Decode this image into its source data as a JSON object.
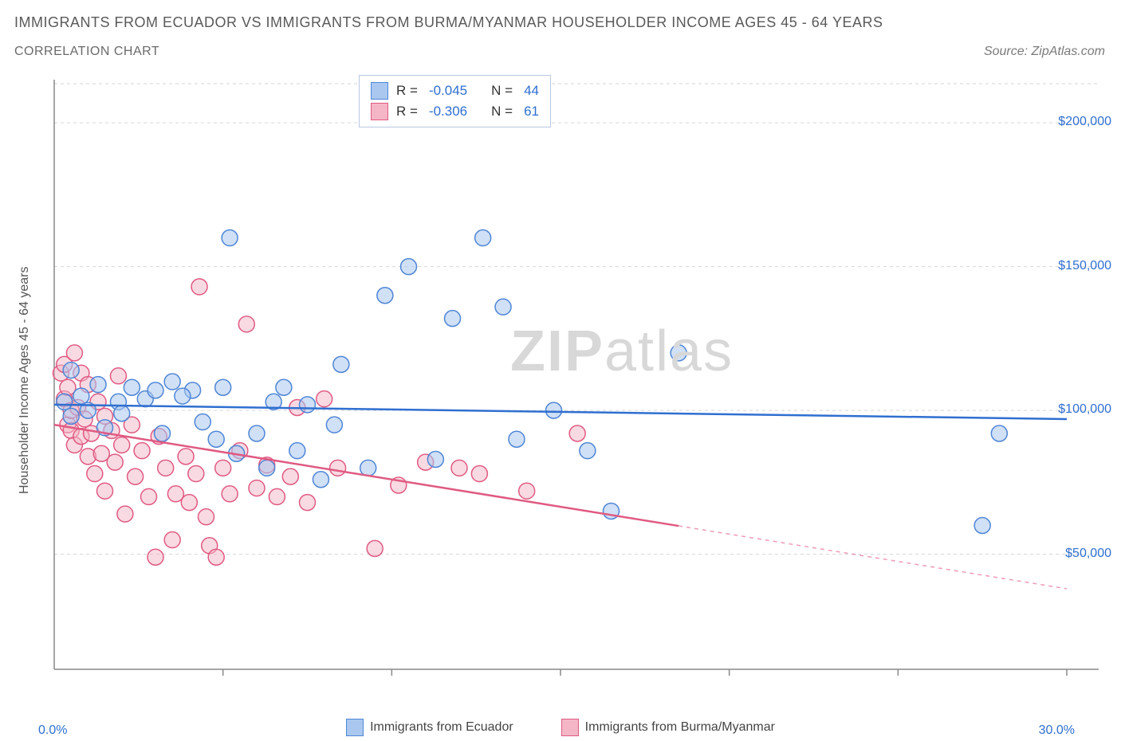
{
  "title": "IMMIGRANTS FROM ECUADOR VS IMMIGRANTS FROM BURMA/MYANMAR HOUSEHOLDER INCOME AGES 45 - 64 YEARS",
  "subtitle": "CORRELATION CHART",
  "source": "Source: ZipAtlas.com",
  "watermark_bold": "ZIP",
  "watermark_light": "atlas",
  "ylabel": "Householder Income Ages 45 - 64 years",
  "xaxis": {
    "min_label": "0.0%",
    "max_label": "30.0%",
    "min": 0,
    "max": 30
  },
  "yaxis": {
    "min": 10000,
    "max": 215000,
    "ticks": [
      50000,
      100000,
      150000,
      200000
    ],
    "tick_labels": [
      "$50,000",
      "$100,000",
      "$150,000",
      "$200,000"
    ]
  },
  "series1": {
    "name": "Immigrants from Ecuador",
    "color_fill": "#a9c7ef",
    "color_stroke": "#4f86d6",
    "line_color": "#2f6fd0",
    "marker_radius": 10,
    "fill_opacity": 0.55,
    "R_label": "R =",
    "R_value": "-0.045",
    "N_label": "N =",
    "N_value": "44",
    "trend": {
      "y_at_xmin": 102000,
      "y_at_xmax": 97000,
      "data_xmax": 30
    },
    "points": [
      [
        0.3,
        103000
      ],
      [
        0.5,
        114000
      ],
      [
        0.5,
        98000
      ],
      [
        0.8,
        105000
      ],
      [
        1.0,
        100000
      ],
      [
        1.3,
        109000
      ],
      [
        1.5,
        94000
      ],
      [
        1.9,
        103000
      ],
      [
        2.3,
        108000
      ],
      [
        2.7,
        104000
      ],
      [
        3.0,
        107000
      ],
      [
        3.2,
        92000
      ],
      [
        3.5,
        110000
      ],
      [
        4.1,
        107000
      ],
      [
        4.4,
        96000
      ],
      [
        5.0,
        108000
      ],
      [
        5.2,
        160000
      ],
      [
        5.4,
        85000
      ],
      [
        6.0,
        92000
      ],
      [
        6.3,
        80000
      ],
      [
        6.8,
        108000
      ],
      [
        7.2,
        86000
      ],
      [
        7.5,
        102000
      ],
      [
        7.9,
        76000
      ],
      [
        8.3,
        95000
      ],
      [
        8.5,
        116000
      ],
      [
        9.3,
        80000
      ],
      [
        9.8,
        140000
      ],
      [
        10.5,
        150000
      ],
      [
        11.3,
        83000
      ],
      [
        11.8,
        132000
      ],
      [
        12.7,
        160000
      ],
      [
        13.3,
        136000
      ],
      [
        13.7,
        90000
      ],
      [
        14.8,
        100000
      ],
      [
        15.8,
        86000
      ],
      [
        16.5,
        65000
      ],
      [
        18.5,
        120000
      ],
      [
        28.0,
        92000
      ],
      [
        27.5,
        60000
      ],
      [
        6.5,
        103000
      ],
      [
        4.8,
        90000
      ],
      [
        3.8,
        105000
      ],
      [
        2.0,
        99000
      ]
    ]
  },
  "series2": {
    "name": "Immigrants from Burma/Myanmar",
    "color_fill": "#f4b6c6",
    "color_stroke": "#e05a82",
    "line_color": "#e05a82",
    "marker_radius": 10,
    "fill_opacity": 0.5,
    "R_label": "R =",
    "R_value": "-0.306",
    "N_label": "N =",
    "N_value": "61",
    "trend": {
      "y_at_xmin": 95000,
      "y_at_xmax": 38000,
      "data_xmax": 18.5
    },
    "points": [
      [
        0.2,
        113000
      ],
      [
        0.3,
        104000
      ],
      [
        0.3,
        116000
      ],
      [
        0.4,
        95000
      ],
      [
        0.4,
        108000
      ],
      [
        0.5,
        100000
      ],
      [
        0.5,
        93000
      ],
      [
        0.6,
        120000
      ],
      [
        0.6,
        88000
      ],
      [
        0.7,
        101000
      ],
      [
        0.8,
        113000
      ],
      [
        0.8,
        91000
      ],
      [
        0.9,
        97000
      ],
      [
        1.0,
        84000
      ],
      [
        1.0,
        109000
      ],
      [
        1.1,
        92000
      ],
      [
        1.2,
        78000
      ],
      [
        1.3,
        103000
      ],
      [
        1.4,
        85000
      ],
      [
        1.5,
        98000
      ],
      [
        1.5,
        72000
      ],
      [
        1.7,
        93000
      ],
      [
        1.8,
        82000
      ],
      [
        1.9,
        112000
      ],
      [
        2.0,
        88000
      ],
      [
        2.1,
        64000
      ],
      [
        2.3,
        95000
      ],
      [
        2.4,
        77000
      ],
      [
        2.6,
        86000
      ],
      [
        2.8,
        70000
      ],
      [
        3.0,
        49000
      ],
      [
        3.1,
        91000
      ],
      [
        3.3,
        80000
      ],
      [
        3.5,
        55000
      ],
      [
        3.6,
        71000
      ],
      [
        3.9,
        84000
      ],
      [
        4.0,
        68000
      ],
      [
        4.2,
        78000
      ],
      [
        4.3,
        143000
      ],
      [
        4.5,
        63000
      ],
      [
        4.6,
        53000
      ],
      [
        4.8,
        49000
      ],
      [
        5.0,
        80000
      ],
      [
        5.2,
        71000
      ],
      [
        5.5,
        86000
      ],
      [
        5.7,
        130000
      ],
      [
        6.0,
        73000
      ],
      [
        6.3,
        81000
      ],
      [
        6.6,
        70000
      ],
      [
        7.0,
        77000
      ],
      [
        7.2,
        101000
      ],
      [
        7.5,
        68000
      ],
      [
        8.0,
        104000
      ],
      [
        8.4,
        80000
      ],
      [
        9.5,
        52000
      ],
      [
        10.2,
        74000
      ],
      [
        11.0,
        82000
      ],
      [
        12.0,
        80000
      ],
      [
        12.6,
        78000
      ],
      [
        14.0,
        72000
      ],
      [
        15.5,
        92000
      ]
    ]
  },
  "plot": {
    "bg": "#ffffff",
    "grid_color": "#d5d5d5",
    "grid_dash": "4 4",
    "axis_color": "#888888",
    "xtick_positions": [
      5,
      10,
      15,
      20,
      25,
      30
    ]
  },
  "legend_bottom": {
    "items": [
      {
        "sw_fill": "#a9c7ef",
        "sw_stroke": "#4f86d6",
        "label": "Immigrants from Ecuador"
      },
      {
        "sw_fill": "#f4b6c6",
        "sw_stroke": "#e05a82",
        "label": "Immigrants from Burma/Myanmar"
      }
    ]
  }
}
